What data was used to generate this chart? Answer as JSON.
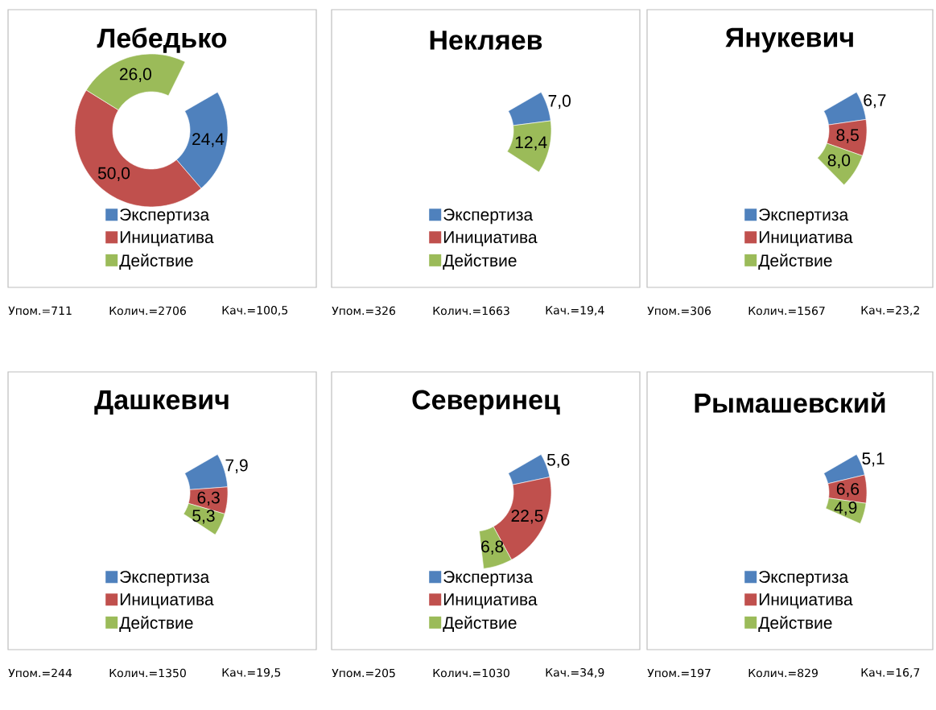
{
  "chart_data": [
    {
      "type": "donut",
      "title": "Лебедько",
      "categories": [
        "Экспертиза",
        "Инициатива",
        "Действие"
      ],
      "values": [
        24.4,
        50.0,
        26.0
      ],
      "value_labels": [
        "24,4",
        "50,0",
        "26,0"
      ],
      "colors": [
        "#4f81bd",
        "#c0504d",
        "#9bbb59"
      ],
      "legend": "bottom",
      "annotations": [
        "Упом.=711",
        "Колич.=2706",
        "Кач.=100,5"
      ]
    },
    {
      "type": "donut",
      "title": "Некляев",
      "categories": [
        "Экспертиза",
        "Инициатива",
        "Действие"
      ],
      "values": [
        7.0,
        null,
        12.4
      ],
      "value_labels": [
        "7,0",
        null,
        "12,4"
      ],
      "colors": [
        "#4f81bd",
        "#c0504d",
        "#9bbb59"
      ],
      "legend": "bottom",
      "annotations": [
        "Упом.=326",
        "Колич.=1663",
        "Кач.=19,4"
      ]
    },
    {
      "type": "donut",
      "title": "Янукевич",
      "categories": [
        "Экспертиза",
        "Инициатива",
        "Действие"
      ],
      "values": [
        6.7,
        8.5,
        8.0
      ],
      "value_labels": [
        "6,7",
        "8,5",
        "8,0"
      ],
      "colors": [
        "#4f81bd",
        "#c0504d",
        "#9bbb59"
      ],
      "legend": "bottom",
      "annotations": [
        "Упом.=306",
        "Колич.=1567",
        "Кач.=23,2"
      ]
    },
    {
      "type": "donut",
      "title": "Дашкевич",
      "categories": [
        "Экспертиза",
        "Инициатива",
        "Действие"
      ],
      "values": [
        7.9,
        6.3,
        5.3
      ],
      "value_labels": [
        "7,9",
        "6,3",
        "5,3"
      ],
      "colors": [
        "#4f81bd",
        "#c0504d",
        "#9bbb59"
      ],
      "legend": "bottom",
      "annotations": [
        "Упом.=244",
        "Колич.=1350",
        "Кач.=19,5"
      ]
    },
    {
      "type": "donut",
      "title": "Северинец",
      "categories": [
        "Экспертиза",
        "Инициатива",
        "Действие"
      ],
      "values": [
        5.6,
        22.5,
        6.8
      ],
      "value_labels": [
        "5,6",
        "22,5",
        "6,8"
      ],
      "colors": [
        "#4f81bd",
        "#c0504d",
        "#9bbb59"
      ],
      "legend": "bottom",
      "annotations": [
        "Упом.=205",
        "Колич.=1030",
        "Кач.=34,9"
      ]
    },
    {
      "type": "donut",
      "title": "Рымашевский",
      "categories": [
        "Экспертиза",
        "Инициатива",
        "Действие"
      ],
      "values": [
        5.1,
        6.6,
        4.9
      ],
      "value_labels": [
        "5,1",
        "6,6",
        "4,9"
      ],
      "colors": [
        "#4f81bd",
        "#c0504d",
        "#9bbb59"
      ],
      "legend": "bottom",
      "annotations": [
        "Упом.=197",
        "Колич.=829",
        "Кач.=16,7"
      ]
    }
  ]
}
